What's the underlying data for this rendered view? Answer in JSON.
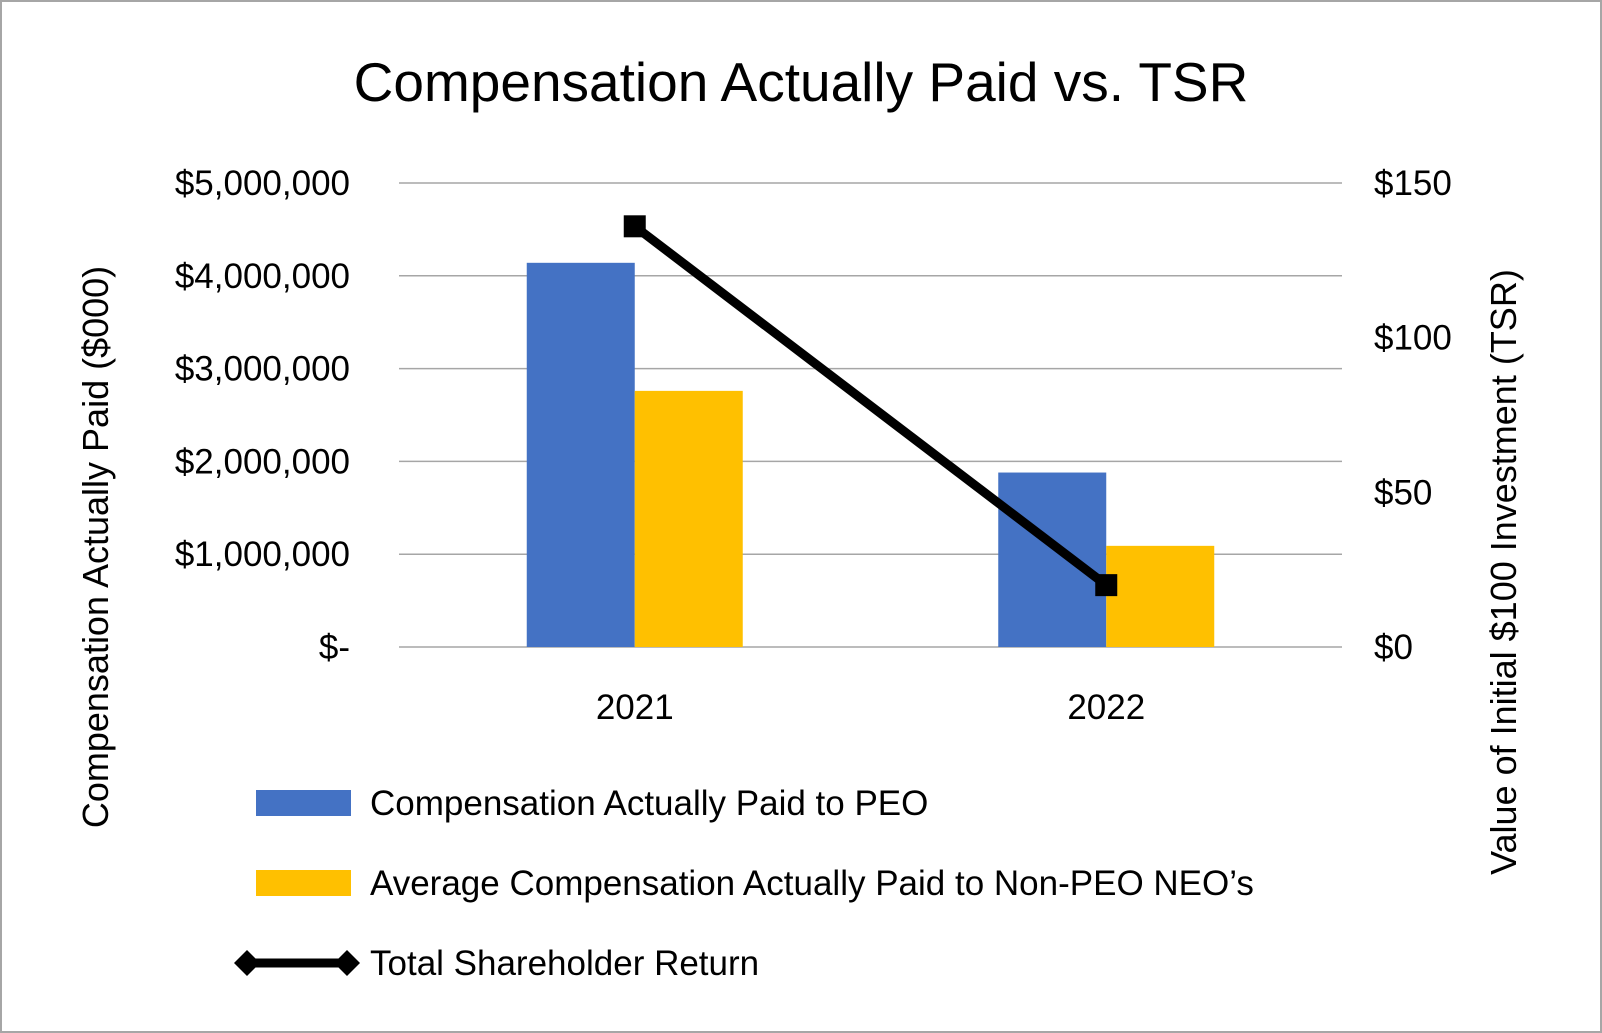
{
  "chart_data": {
    "type": "bar",
    "title": "Compensation Actually Paid vs. TSR",
    "categories": [
      "2021",
      "2022"
    ],
    "series": [
      {
        "name": "Compensation Actually Paid to PEO",
        "kind": "bar",
        "axis": "left",
        "color": "#4472c4",
        "values": [
          4140000,
          1880000
        ]
      },
      {
        "name": "Average Compensation Actually Paid to Non-PEO NEO’s",
        "kind": "bar",
        "axis": "left",
        "color": "#ffc000",
        "values": [
          2760000,
          1090000
        ]
      },
      {
        "name": "Total Shareholder Return",
        "kind": "line",
        "axis": "right",
        "color": "#000000",
        "values": [
          136,
          20
        ]
      }
    ],
    "y_left": {
      "label": "Compensation Actually Paid ($000)",
      "lim": [
        0,
        5000000
      ],
      "ticks": [
        0,
        1000000,
        2000000,
        3000000,
        4000000,
        5000000
      ],
      "tick_labels": [
        "$-",
        "$1,000,000",
        "$2,000,000",
        "$3,000,000",
        "$4,000,000",
        "$5,000,000"
      ]
    },
    "y_right": {
      "label": "Value of Initial $100 Investment (TSR)",
      "lim": [
        0,
        150
      ],
      "ticks": [
        0,
        50,
        100,
        150
      ],
      "tick_labels": [
        "$0",
        "$50",
        "$100",
        "$150"
      ]
    },
    "grid": true,
    "legend_position": "bottom",
    "gridline_color": "#a6a6a6"
  }
}
